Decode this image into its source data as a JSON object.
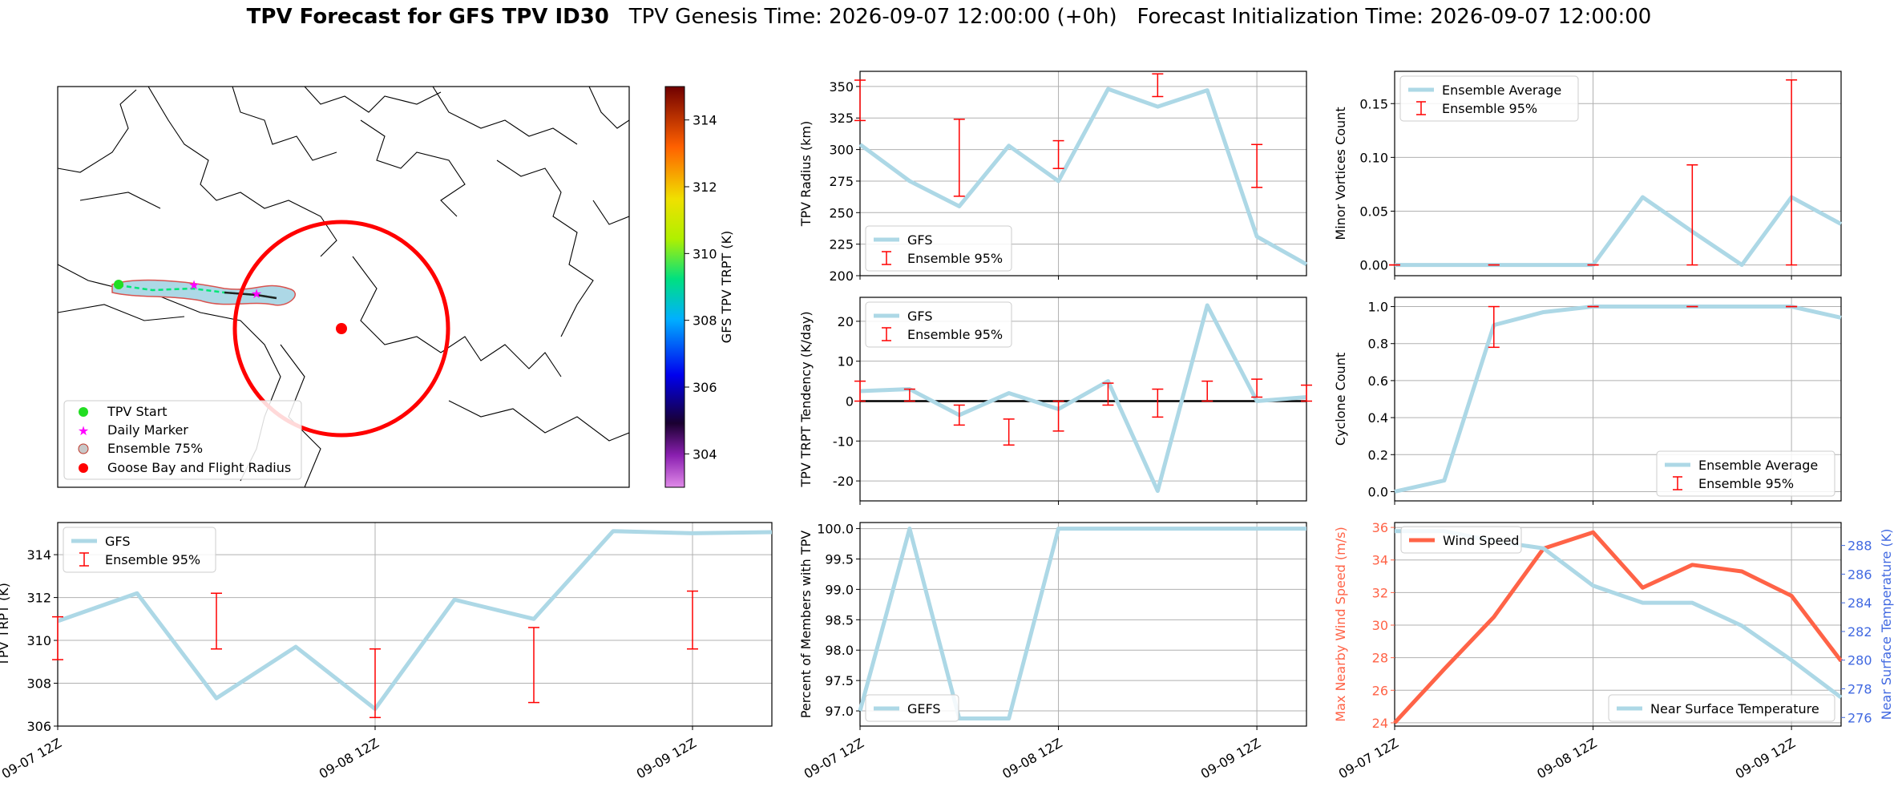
{
  "figure": {
    "title_bold": "TPV Forecast for GFS TPV ID30",
    "genesis": "TPV Genesis Time: 2026-09-07 12:00:00 (+0h)",
    "init": "Forecast Initialization Time: 2026-09-07 12:00:00"
  },
  "colors": {
    "gfs_line": "#add8e6",
    "error_bar": "#ff0000",
    "wind": "#ff6347",
    "temp": "#add8e6",
    "temp_axis": "#4169e1",
    "circle": "#ff0000"
  },
  "time_ticks": [
    "09-07 12Z",
    "09-08 12Z",
    "09-09 12Z"
  ],
  "chart_data": [
    {
      "id": "map",
      "type": "map",
      "colorbar": {
        "label": "GFS TPV TRPT (K)",
        "range": [
          303,
          315
        ],
        "ticks": [
          "304",
          "306",
          "308",
          "310",
          "312",
          "314"
        ]
      },
      "legend": [
        "TPV Start",
        "Daily Marker",
        "Ensemble 75%",
        "Goose Bay and Flight Radius"
      ],
      "legend_placement": "lower-left"
    },
    {
      "id": "radius",
      "type": "line",
      "ylabel": "TPV Radius (km)",
      "ylim": [
        200,
        362
      ],
      "yticks": [
        "200",
        "225",
        "250",
        "275",
        "300",
        "325",
        "350"
      ],
      "x": [
        0,
        6,
        12,
        18,
        24,
        30,
        36,
        42,
        48,
        54
      ],
      "series": [
        {
          "name": "GFS",
          "values": [
            304,
            275,
            255,
            303,
            275,
            348,
            334,
            347,
            231,
            209
          ]
        }
      ],
      "error_bars": {
        "name": "Ensemble 95%",
        "x": [
          0,
          12,
          24,
          36,
          48
        ],
        "lower": [
          323,
          263,
          285,
          342,
          270
        ],
        "upper": [
          355,
          324,
          307,
          360,
          304
        ]
      },
      "legend_placement": "lower-left"
    },
    {
      "id": "minor",
      "type": "line",
      "ylabel": "Minor Vortices Count",
      "ylim": [
        -0.01,
        0.18
      ],
      "yticks": [
        "0.00",
        "0.05",
        "0.10",
        "0.15"
      ],
      "x": [
        0,
        6,
        12,
        18,
        24,
        30,
        36,
        42,
        48,
        54
      ],
      "series": [
        {
          "name": "Ensemble Average",
          "values": [
            0,
            0,
            0,
            0,
            0,
            0.063,
            0.031,
            0,
            0.063,
            0.038
          ]
        }
      ],
      "error_bars": {
        "name": "Ensemble 95%",
        "x": [
          0,
          12,
          24,
          36,
          48
        ],
        "lower": [
          0,
          0,
          0,
          0,
          0
        ],
        "upper": [
          0,
          0,
          0,
          0.093,
          0.172
        ]
      },
      "legend_placement": "upper-left"
    },
    {
      "id": "tendency",
      "type": "line",
      "ylabel": "TPV TRPT Tendency (K/day)",
      "ylim": [
        -25,
        26
      ],
      "yticks": [
        "-20",
        "-10",
        "0",
        "10",
        "20"
      ],
      "x": [
        0,
        6,
        12,
        18,
        24,
        30,
        36,
        42,
        48,
        54
      ],
      "series": [
        {
          "name": "GFS",
          "values": [
            2.5,
            3,
            -3.5,
            2,
            -2,
            5,
            -22.5,
            24,
            0,
            1
          ]
        }
      ],
      "error_bars": {
        "name": "Ensemble 95%",
        "x": [
          0,
          6,
          12,
          18,
          24,
          30,
          36,
          42,
          48,
          54
        ],
        "lower": [
          0,
          0,
          -6,
          -11,
          -7.5,
          -1,
          -4,
          0,
          1,
          0
        ],
        "upper": [
          5,
          3,
          -1,
          -4.5,
          0,
          4.5,
          3,
          5,
          5.5,
          4
        ]
      },
      "zero_line": true,
      "legend_placement": "upper-left"
    },
    {
      "id": "cyclone",
      "type": "line",
      "ylabel": "Cyclone Count",
      "ylim": [
        -0.05,
        1.05
      ],
      "yticks": [
        "0.0",
        "0.2",
        "0.4",
        "0.6",
        "0.8",
        "1.0"
      ],
      "x": [
        0,
        6,
        12,
        18,
        24,
        30,
        36,
        42,
        48,
        54
      ],
      "series": [
        {
          "name": "Ensemble Average",
          "values": [
            0,
            0.06,
            0.9,
            0.97,
            1,
            1,
            1,
            1,
            1,
            0.94
          ]
        }
      ],
      "error_bars": {
        "name": "Ensemble 95%",
        "x": [
          12,
          24,
          36,
          48
        ],
        "lower": [
          0.78,
          1,
          1,
          1
        ],
        "upper": [
          1,
          1,
          1,
          1
        ]
      },
      "legend_placement": "lower-right"
    },
    {
      "id": "trpt",
      "type": "line",
      "ylabel": "TPV TRPT (K)",
      "ylim": [
        306,
        315.5
      ],
      "yticks": [
        "306",
        "308",
        "310",
        "312",
        "314"
      ],
      "x": [
        0,
        6,
        12,
        18,
        24,
        30,
        36,
        42,
        48,
        54
      ],
      "series": [
        {
          "name": "GFS",
          "values": [
            310.9,
            312.2,
            307.3,
            309.7,
            306.8,
            311.9,
            311,
            315.1,
            315,
            315.05
          ]
        }
      ],
      "error_bars": {
        "name": "Ensemble 95%",
        "x": [
          0,
          12,
          24,
          36,
          48
        ],
        "lower": [
          309.1,
          309.6,
          306.4,
          307.1,
          309.6
        ],
        "upper": [
          311.1,
          312.2,
          309.6,
          310.6,
          312.3
        ]
      },
      "legend_placement": "upper-left"
    },
    {
      "id": "percent",
      "type": "line",
      "ylabel": "Percent of Members with TPV",
      "ylim": [
        96.75,
        100.1
      ],
      "yticks": [
        "97.0",
        "97.5",
        "98.0",
        "98.5",
        "99.0",
        "99.5",
        "100.0"
      ],
      "x": [
        0,
        6,
        12,
        18,
        24,
        30,
        36,
        42,
        48,
        54
      ],
      "series": [
        {
          "name": "GEFS",
          "values": [
            97,
            100,
            96.875,
            96.875,
            100,
            100,
            100,
            100,
            100,
            100
          ]
        }
      ],
      "legend_placement": "lower-left"
    },
    {
      "id": "wind_temp",
      "type": "line",
      "ylabel": "Max Nearby Wind Speed (m/s)",
      "ylabel_right": "Near Surface Temperature (K)",
      "ylim": [
        23.8,
        36.3
      ],
      "ylim_right": [
        275.4,
        289.6
      ],
      "yticks": [
        "24",
        "26",
        "28",
        "30",
        "32",
        "34",
        "36"
      ],
      "yticks_right": [
        "276",
        "278",
        "280",
        "282",
        "284",
        "286",
        "288"
      ],
      "x": [
        0,
        6,
        12,
        18,
        24,
        30,
        36,
        42,
        48,
        54
      ],
      "series": [
        {
          "name": "Wind Speed",
          "values": [
            24,
            27.3,
            30.5,
            34.7,
            35.7,
            32.3,
            33.7,
            33.3,
            31.8,
            27.8
          ]
        },
        {
          "name": "Near Surface Temperature",
          "values": [
            289,
            289,
            288.3,
            287.8,
            285.2,
            284,
            284,
            282.4,
            280,
            277.4
          ]
        }
      ],
      "legend_placement": "upper-left / lower-right"
    }
  ]
}
